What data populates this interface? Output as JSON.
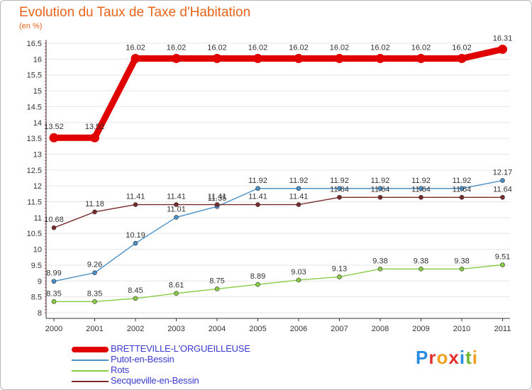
{
  "header": {
    "title": "Evolution du Taux de Taxe d'Habitation",
    "subtitle": "(en %)"
  },
  "logo": {
    "text": "Proxiti",
    "letter_colors": [
      "#2a8be0",
      "#e03030",
      "#f0a020",
      "#e03030",
      "#2a8be0",
      "#70b830",
      "#f0a020"
    ]
  },
  "chart_data": {
    "type": "line",
    "title": "Evolution du Taux de Taxe d'Habitation",
    "subtitle": "(en %)",
    "xlabel": "",
    "ylabel": "",
    "x": [
      "2000",
      "2001",
      "2002",
      "2003",
      "2004",
      "2005",
      "2006",
      "2007",
      "2008",
      "2009",
      "2010",
      "2011"
    ],
    "y_ticks": [
      "8",
      "8.5",
      "9",
      "9.5",
      "10",
      "10.5",
      "11",
      "11.5",
      "12",
      "12.5",
      "13",
      "13.5",
      "14",
      "14.5",
      "15",
      "15.5",
      "16",
      "16.5"
    ],
    "ylim": [
      8,
      16.5
    ],
    "grid": "horizontal",
    "legend_position": "bottom-left",
    "series": [
      {
        "name": "BRETTEVILLE-L'ORGUEILLEUSE",
        "color": "#e00000",
        "emphasis": "thick",
        "values": [
          13.52,
          13.52,
          16.02,
          16.02,
          16.02,
          16.02,
          16.02,
          16.02,
          16.02,
          16.02,
          16.02,
          16.31
        ],
        "labels": [
          "13.52",
          "13.52",
          "16.02",
          "16.02",
          "16.02",
          "16.02",
          "16.02",
          "16.02",
          "16.02",
          "16.02",
          "16.02",
          "16.31"
        ]
      },
      {
        "name": "Putot-en-Bessin",
        "color": "#4a90c8",
        "emphasis": "thin",
        "values": [
          8.99,
          9.26,
          10.19,
          11.01,
          11.35,
          11.92,
          11.92,
          11.92,
          11.92,
          11.92,
          11.92,
          12.17
        ],
        "labels": [
          "8.99",
          "9.26",
          "10.19",
          "11.01",
          "11.35",
          "11.92",
          "11.92",
          "11.92",
          "11.92",
          "11.92",
          "11.92",
          "12.17"
        ]
      },
      {
        "name": "Rots",
        "color": "#88cc44",
        "emphasis": "thin",
        "values": [
          8.35,
          8.35,
          8.45,
          8.61,
          8.75,
          8.89,
          9.03,
          9.13,
          9.38,
          9.38,
          9.38,
          9.51
        ],
        "labels": [
          "8.35",
          "8.35",
          "8.45",
          "8.61",
          "8.75",
          "8.89",
          "9.03",
          "9.13",
          "9.38",
          "9.38",
          "9.38",
          "9.51"
        ]
      },
      {
        "name": "Secqueville-en-Bessin",
        "color": "#7a2a2a",
        "emphasis": "thin",
        "values": [
          10.68,
          11.18,
          11.41,
          11.41,
          11.41,
          11.41,
          11.41,
          11.64,
          11.64,
          11.64,
          11.64,
          11.64
        ],
        "labels": [
          "10.68",
          "11.18",
          "11.41",
          "11.41",
          "11.41",
          "11.41",
          "11.41",
          "11.64",
          "11.64",
          "11.64",
          "11.64",
          "11.64"
        ]
      }
    ]
  }
}
